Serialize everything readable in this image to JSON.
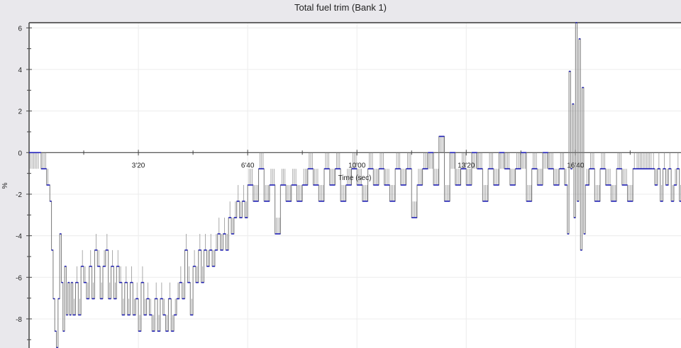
{
  "chart_data": {
    "type": "line",
    "title": "Total fuel trim (Bank 1)",
    "xlabel": "Time (sec)",
    "ylabel": "%",
    "xlim": [
      0,
      1193
    ],
    "ylim": [
      -9.4,
      6.25
    ],
    "grid": true,
    "x_ticks": [
      {
        "value": 200,
        "label": "3'20"
      },
      {
        "value": 400,
        "label": "6'40"
      },
      {
        "value": 600,
        "label": "10'00"
      },
      {
        "value": 800,
        "label": "13'20"
      },
      {
        "value": 1000,
        "label": "16'40"
      }
    ],
    "x_minor_ticks": [
      100,
      300,
      500,
      700,
      900,
      1100
    ],
    "y_ticks": [
      {
        "value": 6,
        "label": "6"
      },
      {
        "value": 4,
        "label": "4"
      },
      {
        "value": 2,
        "label": "2"
      },
      {
        "value": 0,
        "label": "0"
      },
      {
        "value": -2,
        "label": "-2"
      },
      {
        "value": -4,
        "label": "-4"
      },
      {
        "value": -6,
        "label": "-6"
      },
      {
        "value": -8,
        "label": "-8"
      }
    ],
    "y_minor_ticks": [
      5,
      3,
      1,
      -1,
      -3,
      -5,
      -7,
      -9
    ],
    "colors": {
      "line": "#7a7a7a",
      "marker": "#1f1fb8",
      "grid": "#ececec",
      "axis": "#444444",
      "background": "#e9e8ec",
      "plot": "#ffffff"
    },
    "series": [
      {
        "x": [
          0,
          20,
          22,
          32,
          38,
          41,
          44,
          47,
          50,
          53,
          56,
          59,
          62,
          65,
          68,
          71,
          74,
          77,
          80,
          85,
          90,
          95,
          100,
          105,
          110,
          115,
          120,
          125,
          130,
          135,
          140,
          145,
          150,
          155,
          160,
          165,
          170,
          175,
          180,
          185,
          190,
          195,
          200,
          205,
          210,
          215,
          220,
          225,
          230,
          235,
          240,
          245,
          250,
          255,
          260,
          265,
          270,
          275,
          280,
          285,
          290,
          295,
          300,
          305,
          310,
          315,
          320,
          325,
          330,
          335,
          340,
          345,
          350,
          355,
          360,
          365,
          370,
          375,
          380,
          385,
          390,
          395,
          400,
          410,
          420,
          430,
          440,
          450,
          460,
          470,
          480,
          490,
          500,
          510,
          520,
          530,
          540,
          550,
          560,
          570,
          580,
          590,
          600,
          610,
          620,
          630,
          640,
          650,
          660,
          670,
          680,
          690,
          700,
          710,
          720,
          730,
          740,
          750,
          760,
          770,
          780,
          790,
          800,
          810,
          820,
          830,
          840,
          850,
          860,
          870,
          880,
          890,
          900,
          910,
          920,
          930,
          940,
          950,
          960,
          970,
          980,
          985,
          988,
          991,
          994,
          997,
          1000,
          1003,
          1006,
          1009,
          1012,
          1015,
          1018,
          1025,
          1035,
          1045,
          1055,
          1065,
          1075,
          1085,
          1095,
          1105,
          1110,
          1140,
          1145,
          1150,
          1155,
          1160,
          1165,
          1170,
          1175,
          1180,
          1185,
          1190
        ],
        "y": [
          0,
          0,
          -0.78,
          -1.56,
          -2.34,
          -4.69,
          -7.03,
          -8.59,
          -9.38,
          -7.03,
          -3.91,
          -6.25,
          -8.59,
          -5.47,
          -7.81,
          -6.25,
          -7.81,
          -6.25,
          -7.81,
          -6.25,
          -7.81,
          -5.47,
          -6.25,
          -7.03,
          -5.47,
          -7.03,
          -4.69,
          -5.47,
          -7.03,
          -5.47,
          -4.69,
          -7.03,
          -5.47,
          -7.03,
          -5.47,
          -6.25,
          -7.81,
          -6.25,
          -7.81,
          -6.25,
          -7.81,
          -7.03,
          -8.59,
          -6.25,
          -7.81,
          -7.03,
          -7.81,
          -8.59,
          -7.03,
          -8.59,
          -7.03,
          -7.81,
          -8.59,
          -7.03,
          -8.59,
          -7.81,
          -7.03,
          -6.25,
          -7.03,
          -4.69,
          -6.25,
          -7.81,
          -5.47,
          -6.25,
          -4.69,
          -6.25,
          -4.69,
          -5.47,
          -4.69,
          -5.47,
          -4.69,
          -3.91,
          -4.69,
          -3.91,
          -4.69,
          -3.13,
          -3.91,
          -3.13,
          -2.34,
          -3.13,
          -2.34,
          -3.13,
          -1.56,
          -2.34,
          -0.78,
          -2.34,
          -1.56,
          -3.91,
          -1.56,
          -2.34,
          -1.56,
          -2.34,
          -1.56,
          -0.78,
          -1.56,
          -2.34,
          -0.78,
          -1.56,
          -0.78,
          -2.34,
          -1.56,
          -0.78,
          -1.56,
          -2.34,
          -0.78,
          -1.56,
          -0.78,
          -1.56,
          -2.34,
          -0.78,
          -1.56,
          -0.78,
          -3.13,
          -1.56,
          -0.78,
          0,
          -1.56,
          0.78,
          -2.34,
          0,
          -1.56,
          -0.78,
          -1.56,
          0,
          -0.78,
          -2.34,
          -0.78,
          -1.56,
          0,
          -0.78,
          -1.56,
          -0.78,
          0,
          -2.34,
          -0.78,
          -1.56,
          0,
          -0.78,
          -1.56,
          -0.78,
          -1.56,
          -3.91,
          3.91,
          -0.78,
          2.34,
          -3.13,
          6.25,
          -2.34,
          5.47,
          -4.69,
          3.13,
          -3.91,
          -1.56,
          -0.78,
          -2.34,
          -0.78,
          -1.56,
          -2.34,
          -0.78,
          -1.56,
          -2.34,
          -0.78,
          -0.78,
          -0.78,
          -1.56,
          -0.78,
          -2.34,
          -0.78,
          -1.56,
          -0.78,
          -2.34,
          -1.56,
          -0.78,
          -2.34
        ]
      }
    ]
  }
}
